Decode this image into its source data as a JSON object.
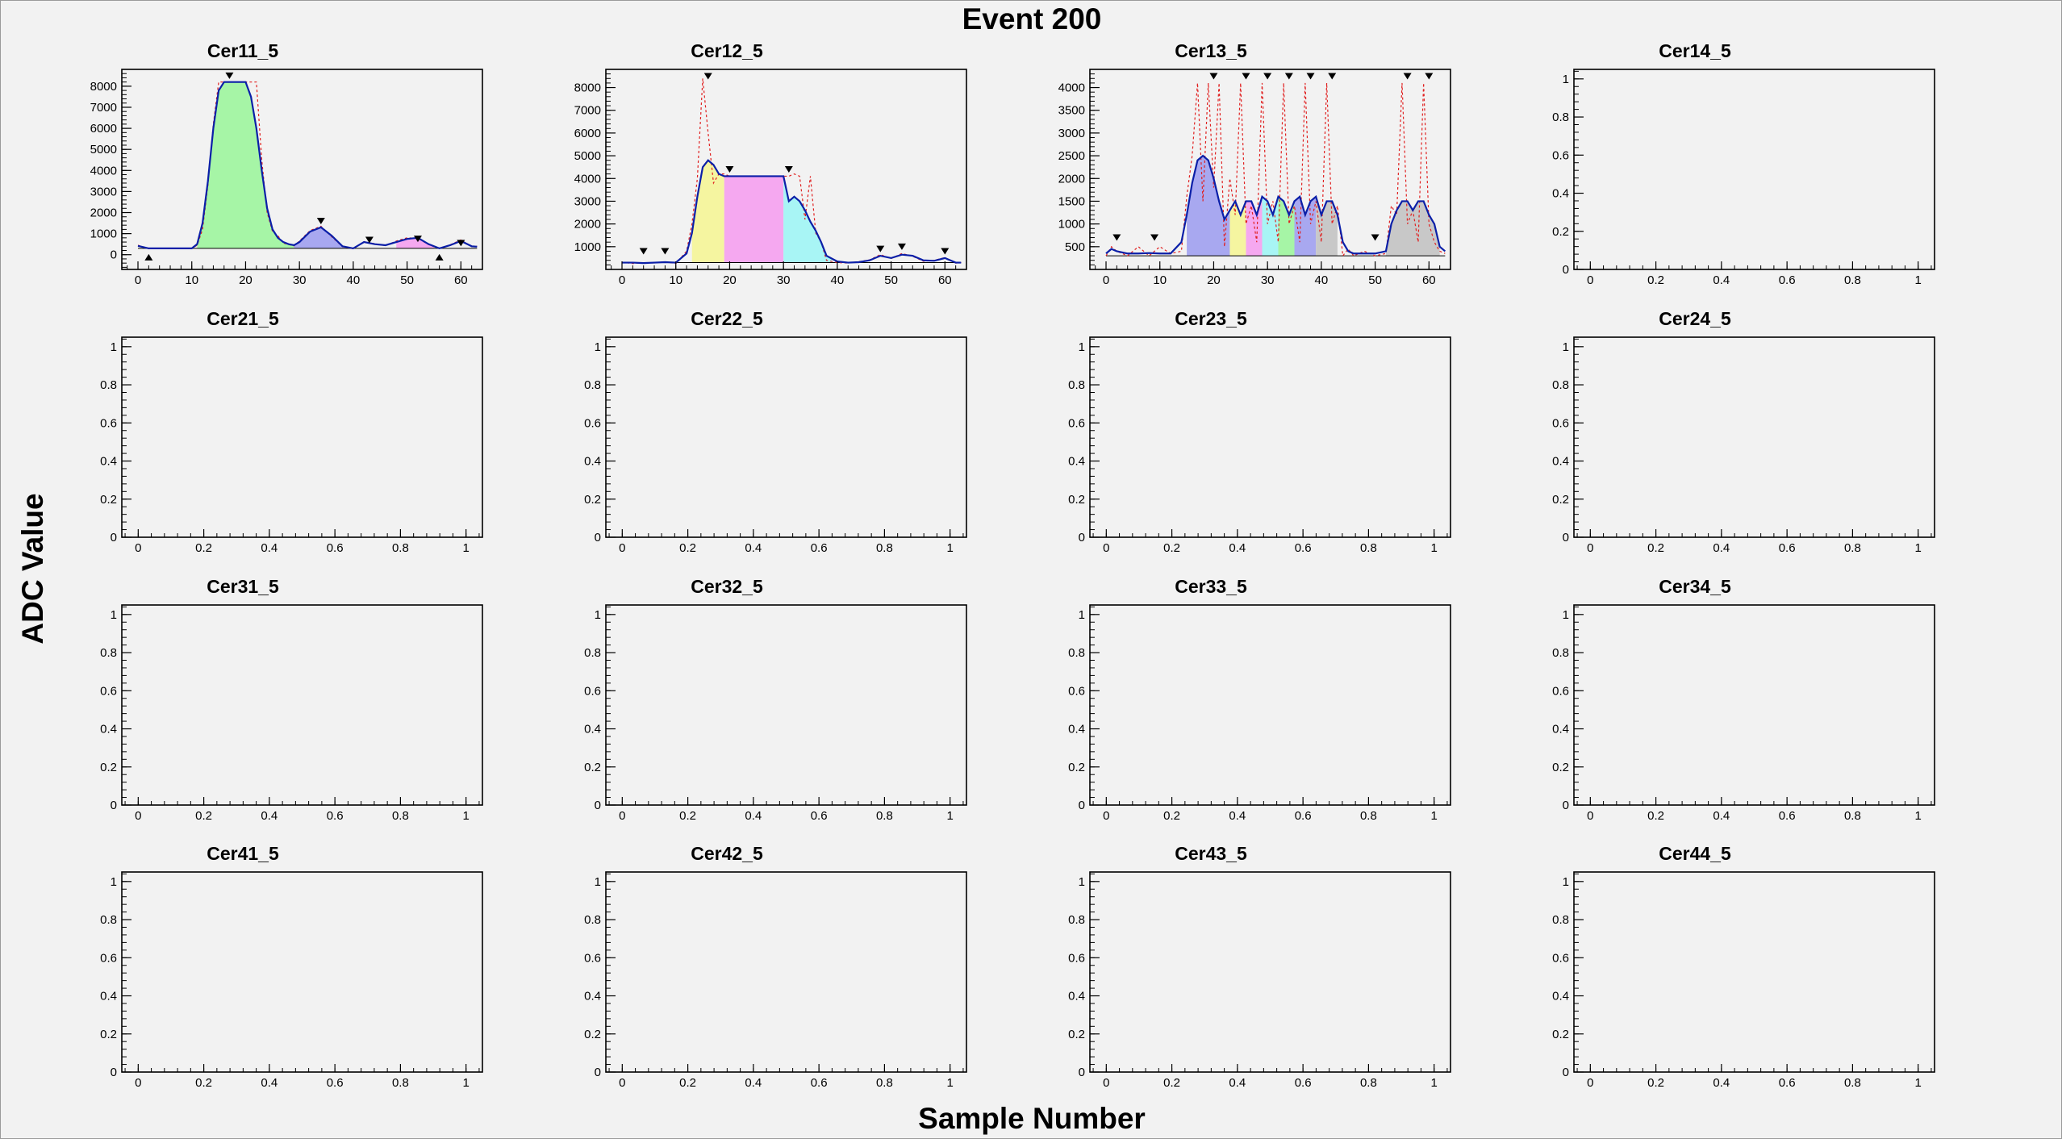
{
  "title": "Event 200",
  "x_axis_title": "Sample Number",
  "y_axis_title": "ADC Value",
  "colors": {
    "background": "#f2f2f2",
    "waveform": "#0b1fa8",
    "raw_samples": "#e02020",
    "peak_fills": [
      "#a6f5a6",
      "#a8a8f0",
      "#f5a8f0",
      "#f5f5a0",
      "#a8f5f5",
      "#c8c8c8"
    ]
  },
  "chart_data": [
    {
      "type": "line",
      "name": "Cer11_5",
      "xlim": [
        -3,
        64
      ],
      "ylim": [
        -700,
        8800
      ],
      "xticks": [
        0,
        10,
        20,
        30,
        40,
        50,
        60
      ],
      "yticks": [
        0,
        1000,
        2000,
        3000,
        4000,
        5000,
        6000,
        7000,
        8000
      ],
      "x": [
        0,
        2,
        4,
        6,
        8,
        10,
        11,
        12,
        13,
        14,
        15,
        16,
        17,
        18,
        19,
        20,
        21,
        22,
        23,
        24,
        25,
        26,
        27,
        28,
        29,
        30,
        32,
        34,
        36,
        38,
        40,
        42,
        44,
        46,
        48,
        50,
        52,
        54,
        56,
        58,
        60,
        62,
        63
      ],
      "y": [
        420,
        300,
        300,
        300,
        300,
        300,
        500,
        1500,
        3500,
        6000,
        7800,
        8200,
        8200,
        8200,
        8200,
        8200,
        7500,
        6000,
        4000,
        2200,
        1200,
        800,
        600,
        500,
        450,
        600,
        1100,
        1300,
        900,
        400,
        300,
        600,
        500,
        450,
        600,
        750,
        800,
        500,
        300,
        450,
        650,
        400,
        380
      ],
      "raw_y": [
        450,
        280,
        300,
        310,
        280,
        300,
        450,
        1200,
        3300,
        6200,
        8200,
        8200,
        8200,
        8200,
        8200,
        8200,
        8200,
        8200,
        4500,
        2000,
        1100,
        900,
        550,
        480,
        420,
        650,
        1150,
        1350,
        850,
        380,
        280,
        620,
        520,
        430,
        650,
        800,
        780,
        480,
        300,
        470,
        700,
        380,
        400
      ],
      "fills": [
        [
          11,
          29,
          0
        ],
        [
          29,
          40,
          1
        ],
        [
          48,
          55,
          2
        ]
      ],
      "peaks_top": [
        [
          17,
          8500
        ],
        [
          34,
          1600
        ],
        [
          43,
          700
        ],
        [
          52,
          750
        ],
        [
          60,
          550
        ]
      ],
      "peaks_bottom": [
        [
          2,
          -120
        ],
        [
          56,
          -120
        ]
      ]
    },
    {
      "type": "line",
      "name": "Cer12_5",
      "xlim": [
        -3,
        64
      ],
      "ylim": [
        0,
        8800
      ],
      "xticks": [
        0,
        10,
        20,
        30,
        40,
        50,
        60
      ],
      "yticks": [
        1000,
        2000,
        3000,
        4000,
        5000,
        6000,
        7000,
        8000
      ],
      "x": [
        0,
        2,
        4,
        6,
        8,
        10,
        12,
        13,
        14,
        15,
        16,
        17,
        18,
        19,
        20,
        22,
        24,
        26,
        28,
        30,
        31,
        32,
        33,
        34,
        35,
        36,
        37,
        38,
        40,
        42,
        44,
        46,
        48,
        50,
        52,
        54,
        56,
        58,
        60,
        62,
        63
      ],
      "y": [
        300,
        300,
        280,
        300,
        320,
        300,
        700,
        1600,
        3200,
        4500,
        4800,
        4600,
        4200,
        4100,
        4100,
        4100,
        4100,
        4100,
        4100,
        4100,
        3000,
        3200,
        3000,
        2600,
        2100,
        1700,
        1200,
        600,
        350,
        300,
        320,
        400,
        600,
        500,
        650,
        600,
        400,
        380,
        500,
        300,
        300
      ],
      "raw_y": [
        320,
        260,
        300,
        280,
        340,
        260,
        800,
        2000,
        4000,
        8400,
        6000,
        3800,
        4200,
        4200,
        4100,
        4100,
        4100,
        4100,
        4100,
        4100,
        4100,
        4200,
        4100,
        2200,
        4100,
        1600,
        1200,
        400,
        300,
        280,
        340,
        420,
        650,
        480,
        700,
        580,
        360,
        400,
        520,
        280,
        300
      ],
      "fills": [
        [
          13,
          19,
          3
        ],
        [
          19,
          30,
          2
        ],
        [
          30,
          39,
          4
        ]
      ],
      "peaks_top": [
        [
          16,
          8500
        ],
        [
          20,
          4400
        ],
        [
          31,
          4400
        ],
        [
          4,
          800
        ],
        [
          8,
          800
        ],
        [
          48,
          900
        ],
        [
          52,
          1000
        ],
        [
          60,
          800
        ]
      ],
      "peaks_bottom": []
    },
    {
      "type": "line",
      "name": "Cer13_5",
      "xlim": [
        -3,
        64
      ],
      "ylim": [
        0,
        4400
      ],
      "xticks": [
        0,
        10,
        20,
        30,
        40,
        50,
        60
      ],
      "yticks": [
        500,
        1000,
        1500,
        2000,
        2500,
        3000,
        3500,
        4000
      ],
      "x": [
        0,
        1,
        2,
        4,
        6,
        8,
        10,
        12,
        14,
        15,
        16,
        17,
        18,
        19,
        20,
        21,
        22,
        23,
        24,
        25,
        26,
        27,
        28,
        29,
        30,
        31,
        32,
        33,
        34,
        35,
        36,
        37,
        38,
        39,
        40,
        41,
        42,
        43,
        44,
        45,
        46,
        48,
        50,
        52,
        53,
        54,
        55,
        56,
        57,
        58,
        59,
        60,
        61,
        62,
        63
      ],
      "y": [
        350,
        450,
        400,
        350,
        350,
        360,
        350,
        350,
        600,
        1200,
        1900,
        2400,
        2500,
        2400,
        2000,
        1500,
        1100,
        1300,
        1500,
        1200,
        1500,
        1500,
        1200,
        1600,
        1500,
        1200,
        1600,
        1500,
        1200,
        1500,
        1600,
        1200,
        1500,
        1600,
        1200,
        1500,
        1500,
        1200,
        600,
        400,
        350,
        350,
        350,
        400,
        1000,
        1300,
        1500,
        1500,
        1300,
        1500,
        1500,
        1200,
        1000,
        500,
        400
      ],
      "raw_y": [
        300,
        500,
        400,
        300,
        500,
        300,
        500,
        350,
        400,
        1600,
        2500,
        4100,
        1500,
        4100,
        1800,
        4100,
        500,
        2000,
        1200,
        4100,
        1000,
        1400,
        600,
        4100,
        1000,
        1500,
        600,
        4100,
        1000,
        1400,
        600,
        4100,
        1000,
        1500,
        600,
        4100,
        1000,
        1400,
        300,
        450,
        300,
        400,
        300,
        350,
        1400,
        1200,
        4100,
        1000,
        1300,
        600,
        4100,
        1000,
        600,
        400,
        350
      ],
      "fills": [
        [
          15,
          23,
          1
        ],
        [
          23,
          26,
          3
        ],
        [
          26,
          29,
          2
        ],
        [
          29,
          32,
          4
        ],
        [
          32,
          35,
          0
        ],
        [
          35,
          39,
          1
        ],
        [
          39,
          43,
          5
        ],
        [
          52,
          62,
          5
        ]
      ],
      "peaks_top": [
        [
          20,
          4250
        ],
        [
          26,
          4250
        ],
        [
          30,
          4250
        ],
        [
          34,
          4250
        ],
        [
          38,
          4250
        ],
        [
          42,
          4250
        ],
        [
          56,
          4250
        ],
        [
          60,
          4250
        ],
        [
          2,
          700
        ],
        [
          9,
          700
        ],
        [
          50,
          700
        ]
      ],
      "peaks_bottom": []
    },
    {
      "type": "line",
      "name": "Cer14_5",
      "xlim": [
        -0.05,
        1.05
      ],
      "ylim": [
        0,
        1.05
      ],
      "xticks": [
        0,
        0.2,
        0.4,
        0.6,
        0.8,
        1
      ],
      "yticks": [
        0,
        0.2,
        0.4,
        0.6,
        0.8,
        1
      ],
      "x": [],
      "y": []
    },
    {
      "type": "line",
      "name": "Cer21_5",
      "xlim": [
        -0.05,
        1.05
      ],
      "ylim": [
        0,
        1.05
      ],
      "xticks": [
        0,
        0.2,
        0.4,
        0.6,
        0.8,
        1
      ],
      "yticks": [
        0,
        0.2,
        0.4,
        0.6,
        0.8,
        1
      ],
      "x": [],
      "y": []
    },
    {
      "type": "line",
      "name": "Cer22_5",
      "xlim": [
        -0.05,
        1.05
      ],
      "ylim": [
        0,
        1.05
      ],
      "xticks": [
        0,
        0.2,
        0.4,
        0.6,
        0.8,
        1
      ],
      "yticks": [
        0,
        0.2,
        0.4,
        0.6,
        0.8,
        1
      ],
      "x": [],
      "y": []
    },
    {
      "type": "line",
      "name": "Cer23_5",
      "xlim": [
        -0.05,
        1.05
      ],
      "ylim": [
        0,
        1.05
      ],
      "xticks": [
        0,
        0.2,
        0.4,
        0.6,
        0.8,
        1
      ],
      "yticks": [
        0,
        0.2,
        0.4,
        0.6,
        0.8,
        1
      ],
      "x": [],
      "y": []
    },
    {
      "type": "line",
      "name": "Cer24_5",
      "xlim": [
        -0.05,
        1.05
      ],
      "ylim": [
        0,
        1.05
      ],
      "xticks": [
        0,
        0.2,
        0.4,
        0.6,
        0.8,
        1
      ],
      "yticks": [
        0,
        0.2,
        0.4,
        0.6,
        0.8,
        1
      ],
      "x": [],
      "y": []
    },
    {
      "type": "line",
      "name": "Cer31_5",
      "xlim": [
        -0.05,
        1.05
      ],
      "ylim": [
        0,
        1.05
      ],
      "xticks": [
        0,
        0.2,
        0.4,
        0.6,
        0.8,
        1
      ],
      "yticks": [
        0,
        0.2,
        0.4,
        0.6,
        0.8,
        1
      ],
      "x": [],
      "y": []
    },
    {
      "type": "line",
      "name": "Cer32_5",
      "xlim": [
        -0.05,
        1.05
      ],
      "ylim": [
        0,
        1.05
      ],
      "xticks": [
        0,
        0.2,
        0.4,
        0.6,
        0.8,
        1
      ],
      "yticks": [
        0,
        0.2,
        0.4,
        0.6,
        0.8,
        1
      ],
      "x": [],
      "y": []
    },
    {
      "type": "line",
      "name": "Cer33_5",
      "xlim": [
        -0.05,
        1.05
      ],
      "ylim": [
        0,
        1.05
      ],
      "xticks": [
        0,
        0.2,
        0.4,
        0.6,
        0.8,
        1
      ],
      "yticks": [
        0,
        0.2,
        0.4,
        0.6,
        0.8,
        1
      ],
      "x": [],
      "y": []
    },
    {
      "type": "line",
      "name": "Cer34_5",
      "xlim": [
        -0.05,
        1.05
      ],
      "ylim": [
        0,
        1.05
      ],
      "xticks": [
        0,
        0.2,
        0.4,
        0.6,
        0.8,
        1
      ],
      "yticks": [
        0,
        0.2,
        0.4,
        0.6,
        0.8,
        1
      ],
      "x": [],
      "y": []
    },
    {
      "type": "line",
      "name": "Cer41_5",
      "xlim": [
        -0.05,
        1.05
      ],
      "ylim": [
        0,
        1.05
      ],
      "xticks": [
        0,
        0.2,
        0.4,
        0.6,
        0.8,
        1
      ],
      "yticks": [
        0,
        0.2,
        0.4,
        0.6,
        0.8,
        1
      ],
      "x": [],
      "y": []
    },
    {
      "type": "line",
      "name": "Cer42_5",
      "xlim": [
        -0.05,
        1.05
      ],
      "ylim": [
        0,
        1.05
      ],
      "xticks": [
        0,
        0.2,
        0.4,
        0.6,
        0.8,
        1
      ],
      "yticks": [
        0,
        0.2,
        0.4,
        0.6,
        0.8,
        1
      ],
      "x": [],
      "y": []
    },
    {
      "type": "line",
      "name": "Cer43_5",
      "xlim": [
        -0.05,
        1.05
      ],
      "ylim": [
        0,
        1.05
      ],
      "xticks": [
        0,
        0.2,
        0.4,
        0.6,
        0.8,
        1
      ],
      "yticks": [
        0,
        0.2,
        0.4,
        0.6,
        0.8,
        1
      ],
      "x": [],
      "y": []
    },
    {
      "type": "line",
      "name": "Cer44_5",
      "xlim": [
        -0.05,
        1.05
      ],
      "ylim": [
        0,
        1.05
      ],
      "xticks": [
        0,
        0.2,
        0.4,
        0.6,
        0.8,
        1
      ],
      "yticks": [
        0,
        0.2,
        0.4,
        0.6,
        0.8,
        1
      ],
      "x": [],
      "y": []
    }
  ]
}
